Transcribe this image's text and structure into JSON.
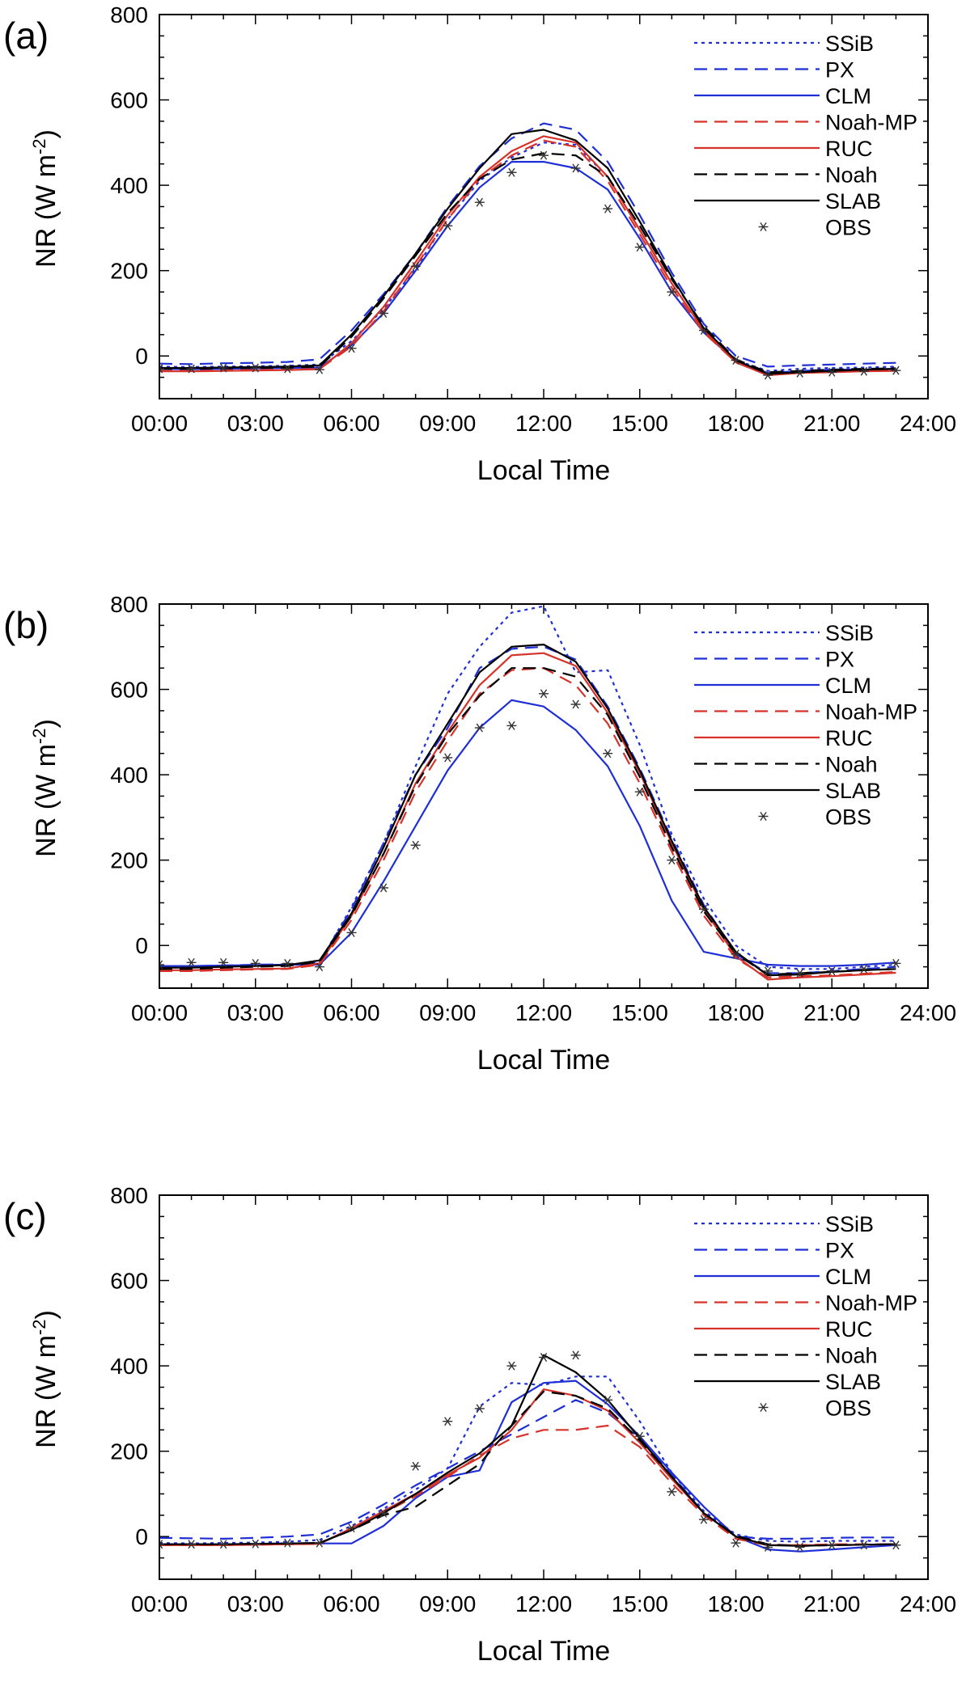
{
  "chart_data": [
    {
      "type": "line",
      "panel_label": "(a)",
      "xlabel": "Local Time",
      "ylabel_main": "NR (W m",
      "ylabel_sup": "-2",
      "ylabel_close": ")",
      "xlim": [
        0,
        24
      ],
      "ylim": [
        -100,
        800
      ],
      "yticks": [
        0,
        200,
        400,
        600,
        800
      ],
      "xticks": [
        "00:00",
        "03:00",
        "06:00",
        "09:00",
        "12:00",
        "15:00",
        "18:00",
        "21:00",
        "24:00"
      ],
      "legend_position": "top-right",
      "x": [
        0,
        1,
        2,
        3,
        4,
        5,
        6,
        7,
        8,
        9,
        10,
        11,
        12,
        13,
        14,
        15,
        16,
        17,
        18,
        19,
        20,
        21,
        22,
        23
      ],
      "series": [
        {
          "name": "SSiB",
          "color": "#1f2fd6",
          "style": "dotted",
          "values": [
            -25,
            -26,
            -25,
            -24,
            -23,
            -20,
            35,
            110,
            205,
            320,
            410,
            465,
            500,
            495,
            420,
            295,
            170,
            60,
            -10,
            -35,
            -30,
            -28,
            -27,
            -25
          ]
        },
        {
          "name": "PX",
          "color": "#1f2fd6",
          "style": "dashed",
          "values": [
            -18,
            -19,
            -17,
            -16,
            -14,
            -8,
            60,
            145,
            240,
            350,
            445,
            510,
            545,
            530,
            455,
            330,
            195,
            75,
            0,
            -25,
            -22,
            -20,
            -18,
            -16
          ]
        },
        {
          "name": "CLM",
          "color": "#1f2fd6",
          "style": "solid",
          "values": [
            -30,
            -31,
            -30,
            -29,
            -28,
            -27,
            25,
            100,
            200,
            305,
            395,
            455,
            455,
            440,
            390,
            275,
            150,
            55,
            -12,
            -40,
            -35,
            -32,
            -32,
            -30
          ]
        },
        {
          "name": "Noah-MP",
          "color": "#d6322a",
          "style": "dashed",
          "values": [
            -35,
            -35,
            -34,
            -33,
            -32,
            -30,
            22,
            105,
            210,
            320,
            415,
            470,
            505,
            490,
            410,
            285,
            160,
            55,
            -15,
            -45,
            -38,
            -36,
            -35,
            -34
          ]
        },
        {
          "name": "RUC",
          "color": "#d6322a",
          "style": "solid",
          "values": [
            -36,
            -36,
            -35,
            -34,
            -33,
            -31,
            30,
            115,
            220,
            330,
            420,
            480,
            515,
            500,
            420,
            295,
            170,
            60,
            -15,
            -45,
            -40,
            -38,
            -36,
            -35
          ]
        },
        {
          "name": "Noah",
          "color": "#000000",
          "style": "dashed",
          "values": [
            -30,
            -30,
            -29,
            -28,
            -27,
            -25,
            45,
            135,
            235,
            335,
            415,
            460,
            475,
            470,
            420,
            305,
            180,
            70,
            -8,
            -38,
            -35,
            -32,
            -30,
            -29
          ]
        },
        {
          "name": "SLAB",
          "color": "#000000",
          "style": "solid",
          "values": [
            -28,
            -28,
            -27,
            -26,
            -25,
            -22,
            50,
            140,
            240,
            345,
            440,
            520,
            530,
            505,
            440,
            315,
            185,
            65,
            -10,
            -42,
            -38,
            -35,
            -32,
            -30
          ]
        }
      ],
      "obs": {
        "name": "OBS",
        "values": [
          -30,
          -30,
          -28,
          -28,
          -30,
          -32,
          18,
          100,
          210,
          305,
          360,
          430,
          470,
          440,
          345,
          255,
          150,
          60,
          -10,
          -45,
          -40,
          -38,
          -36,
          -34
        ]
      }
    },
    {
      "type": "line",
      "panel_label": "(b)",
      "xlabel": "Local Time",
      "ylabel_main": "NR (W m",
      "ylabel_sup": "-2",
      "ylabel_close": ")",
      "xlim": [
        0,
        24
      ],
      "ylim": [
        -100,
        800
      ],
      "yticks": [
        0,
        200,
        400,
        600,
        800
      ],
      "xticks": [
        "00:00",
        "03:00",
        "06:00",
        "09:00",
        "12:00",
        "15:00",
        "18:00",
        "21:00",
        "24:00"
      ],
      "legend_position": "top-right",
      "x": [
        0,
        1,
        2,
        3,
        4,
        5,
        6,
        7,
        8,
        9,
        10,
        11,
        12,
        13,
        14,
        15,
        16,
        17,
        18,
        19,
        20,
        21,
        22,
        23
      ],
      "series": [
        {
          "name": "SSiB",
          "color": "#1f2fd6",
          "style": "dotted",
          "values": [
            -50,
            -50,
            -48,
            -46,
            -45,
            -40,
            90,
            240,
            420,
            590,
            700,
            780,
            795,
            640,
            645,
            470,
            260,
            110,
            0,
            -50,
            -55,
            -55,
            -50,
            -45
          ]
        },
        {
          "name": "PX",
          "color": "#1f2fd6",
          "style": "dashed",
          "values": [
            -48,
            -48,
            -47,
            -45,
            -44,
            -38,
            85,
            240,
            400,
            510,
            650,
            695,
            700,
            670,
            560,
            415,
            250,
            95,
            -20,
            -65,
            -65,
            -60,
            -55,
            -50
          ]
        },
        {
          "name": "CLM",
          "color": "#1f2fd6",
          "style": "solid",
          "values": [
            -48,
            -48,
            -47,
            -46,
            -45,
            -45,
            30,
            150,
            280,
            410,
            510,
            575,
            560,
            505,
            420,
            280,
            105,
            -15,
            -30,
            -45,
            -48,
            -48,
            -45,
            -40
          ]
        },
        {
          "name": "Noah-MP",
          "color": "#d6322a",
          "style": "dashed",
          "values": [
            -60,
            -60,
            -58,
            -56,
            -55,
            -45,
            60,
            200,
            360,
            480,
            590,
            645,
            650,
            610,
            520,
            380,
            220,
            70,
            -30,
            -75,
            -72,
            -70,
            -66,
            -62
          ]
        },
        {
          "name": "RUC",
          "color": "#d6322a",
          "style": "solid",
          "values": [
            -58,
            -58,
            -56,
            -55,
            -54,
            -42,
            70,
            215,
            380,
            500,
            610,
            680,
            685,
            655,
            545,
            405,
            240,
            85,
            -25,
            -80,
            -75,
            -72,
            -68,
            -64
          ]
        },
        {
          "name": "Noah",
          "color": "#000000",
          "style": "dashed",
          "values": [
            -55,
            -55,
            -52,
            -50,
            -48,
            -38,
            70,
            215,
            375,
            495,
            585,
            650,
            650,
            630,
            540,
            395,
            230,
            80,
            -20,
            -68,
            -65,
            -62,
            -58,
            -55
          ]
        },
        {
          "name": "SLAB",
          "color": "#000000",
          "style": "solid",
          "values": [
            -52,
            -52,
            -50,
            -48,
            -46,
            -35,
            75,
            230,
            400,
            520,
            640,
            700,
            705,
            665,
            555,
            410,
            245,
            90,
            -15,
            -70,
            -68,
            -62,
            -58,
            -55
          ]
        }
      ],
      "obs": {
        "name": "OBS",
        "values": [
          -45,
          -40,
          -40,
          -42,
          -42,
          -50,
          30,
          135,
          235,
          440,
          510,
          515,
          590,
          565,
          450,
          360,
          200,
          85,
          -20,
          -60,
          -65,
          -60,
          -55,
          -42
        ]
      }
    },
    {
      "type": "line",
      "panel_label": "(c)",
      "xlabel": "Local Time",
      "ylabel_main": "NR (W m",
      "ylabel_sup": "-2",
      "ylabel_close": ")",
      "xlim": [
        0,
        24
      ],
      "ylim": [
        -100,
        800
      ],
      "yticks": [
        0,
        200,
        400,
        600,
        800
      ],
      "xticks": [
        "00:00",
        "03:00",
        "06:00",
        "09:00",
        "12:00",
        "15:00",
        "18:00",
        "21:00",
        "24:00"
      ],
      "legend_position": "top-right",
      "x": [
        0,
        1,
        2,
        3,
        4,
        5,
        6,
        7,
        8,
        9,
        10,
        11,
        12,
        13,
        14,
        15,
        16,
        17,
        18,
        19,
        20,
        21,
        22,
        23
      ],
      "series": [
        {
          "name": "SSiB",
          "color": "#1f2fd6",
          "style": "dotted",
          "values": [
            -15,
            -16,
            -15,
            -14,
            -12,
            -8,
            25,
            65,
            110,
            160,
            305,
            360,
            355,
            375,
            375,
            270,
            150,
            60,
            5,
            -10,
            -12,
            -10,
            -10,
            -10
          ]
        },
        {
          "name": "PX",
          "color": "#1f2fd6",
          "style": "dashed",
          "values": [
            -3,
            -4,
            -5,
            -3,
            0,
            5,
            35,
            75,
            120,
            160,
            200,
            240,
            280,
            320,
            290,
            230,
            145,
            55,
            0,
            -5,
            -5,
            -3,
            -2,
            -2
          ]
        },
        {
          "name": "CLM",
          "color": "#1f2fd6",
          "style": "solid",
          "values": [
            -18,
            -18,
            -18,
            -17,
            -16,
            -16,
            -16,
            25,
            90,
            140,
            155,
            315,
            360,
            365,
            310,
            235,
            150,
            70,
            0,
            -30,
            -35,
            -30,
            -25,
            -20
          ]
        },
        {
          "name": "Noah-MP",
          "color": "#d6322a",
          "style": "dashed",
          "values": [
            -20,
            -20,
            -20,
            -19,
            -18,
            -17,
            18,
            55,
            95,
            140,
            190,
            230,
            250,
            250,
            260,
            210,
            125,
            50,
            -5,
            -20,
            -20,
            -18,
            -18,
            -18
          ]
        },
        {
          "name": "RUC",
          "color": "#d6322a",
          "style": "solid",
          "values": [
            -20,
            -20,
            -20,
            -19,
            -18,
            -17,
            20,
            60,
            100,
            145,
            185,
            250,
            345,
            330,
            295,
            220,
            135,
            55,
            0,
            -20,
            -20,
            -20,
            -19,
            -18
          ]
        },
        {
          "name": "Noah",
          "color": "#000000",
          "style": "dashed",
          "values": [
            -18,
            -18,
            -18,
            -17,
            -16,
            -15,
            15,
            50,
            70,
            120,
            170,
            260,
            340,
            330,
            300,
            225,
            140,
            55,
            2,
            -18,
            -22,
            -20,
            -19,
            -18
          ]
        },
        {
          "name": "SLAB",
          "color": "#000000",
          "style": "solid",
          "values": [
            -18,
            -18,
            -18,
            -17,
            -16,
            -15,
            15,
            55,
            100,
            150,
            195,
            260,
            425,
            385,
            320,
            230,
            140,
            55,
            0,
            -20,
            -22,
            -20,
            -19,
            -18
          ]
        }
      ],
      "obs": {
        "name": "OBS",
        "values": [
          -18,
          -18,
          -18,
          -17,
          -15,
          -15,
          20,
          55,
          165,
          270,
          300,
          400,
          420,
          425,
          320,
          235,
          105,
          40,
          -15,
          -25,
          -25,
          -20,
          -20,
          -20
        ]
      }
    }
  ]
}
